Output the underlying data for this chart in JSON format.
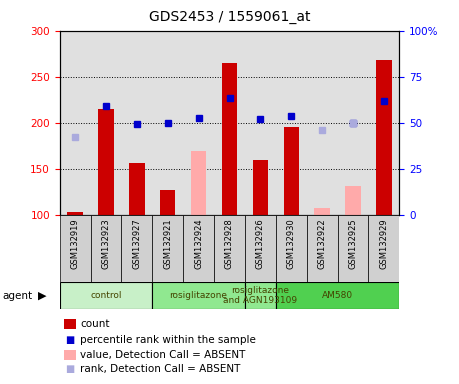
{
  "title": "GDS2453 / 1559061_at",
  "samples": [
    "GSM132919",
    "GSM132923",
    "GSM132927",
    "GSM132921",
    "GSM132924",
    "GSM132928",
    "GSM132926",
    "GSM132930",
    "GSM132922",
    "GSM132925",
    "GSM132929"
  ],
  "bar_values": [
    103,
    215,
    157,
    127,
    null,
    265,
    160,
    196,
    null,
    null,
    268
  ],
  "bar_values_absent": [
    null,
    null,
    null,
    null,
    170,
    null,
    null,
    null,
    108,
    132,
    null
  ],
  "percentile_rank": [
    null,
    218,
    199,
    200,
    205,
    227,
    204,
    208,
    null,
    200,
    224
  ],
  "percentile_rank_absent": [
    185,
    null,
    null,
    null,
    null,
    null,
    null,
    null,
    192,
    200,
    null
  ],
  "ylim_left": [
    100,
    300
  ],
  "ylim_right": [
    0,
    100
  ],
  "yticks_left": [
    100,
    150,
    200,
    250,
    300
  ],
  "yticks_right": [
    0,
    25,
    50,
    75,
    100
  ],
  "group_spans": [
    {
      "start": 0,
      "end": 3,
      "color": "#c8f0c8",
      "label": "control"
    },
    {
      "start": 3,
      "end": 6,
      "color": "#90e890",
      "label": "rosiglitazone"
    },
    {
      "start": 6,
      "end": 7,
      "color": "#90e890",
      "label": "rosiglitazone\nand AGN193109"
    },
    {
      "start": 7,
      "end": 11,
      "color": "#50d050",
      "label": "AM580"
    }
  ],
  "bar_color": "#cc0000",
  "bar_color_absent": "#ffaaaa",
  "dot_color": "#0000cc",
  "dot_color_absent": "#aaaadd",
  "plot_bg_color": "#e0e0e0",
  "xtick_bg_color": "#d0d0d0",
  "grid_lines": [
    150,
    200,
    250
  ]
}
